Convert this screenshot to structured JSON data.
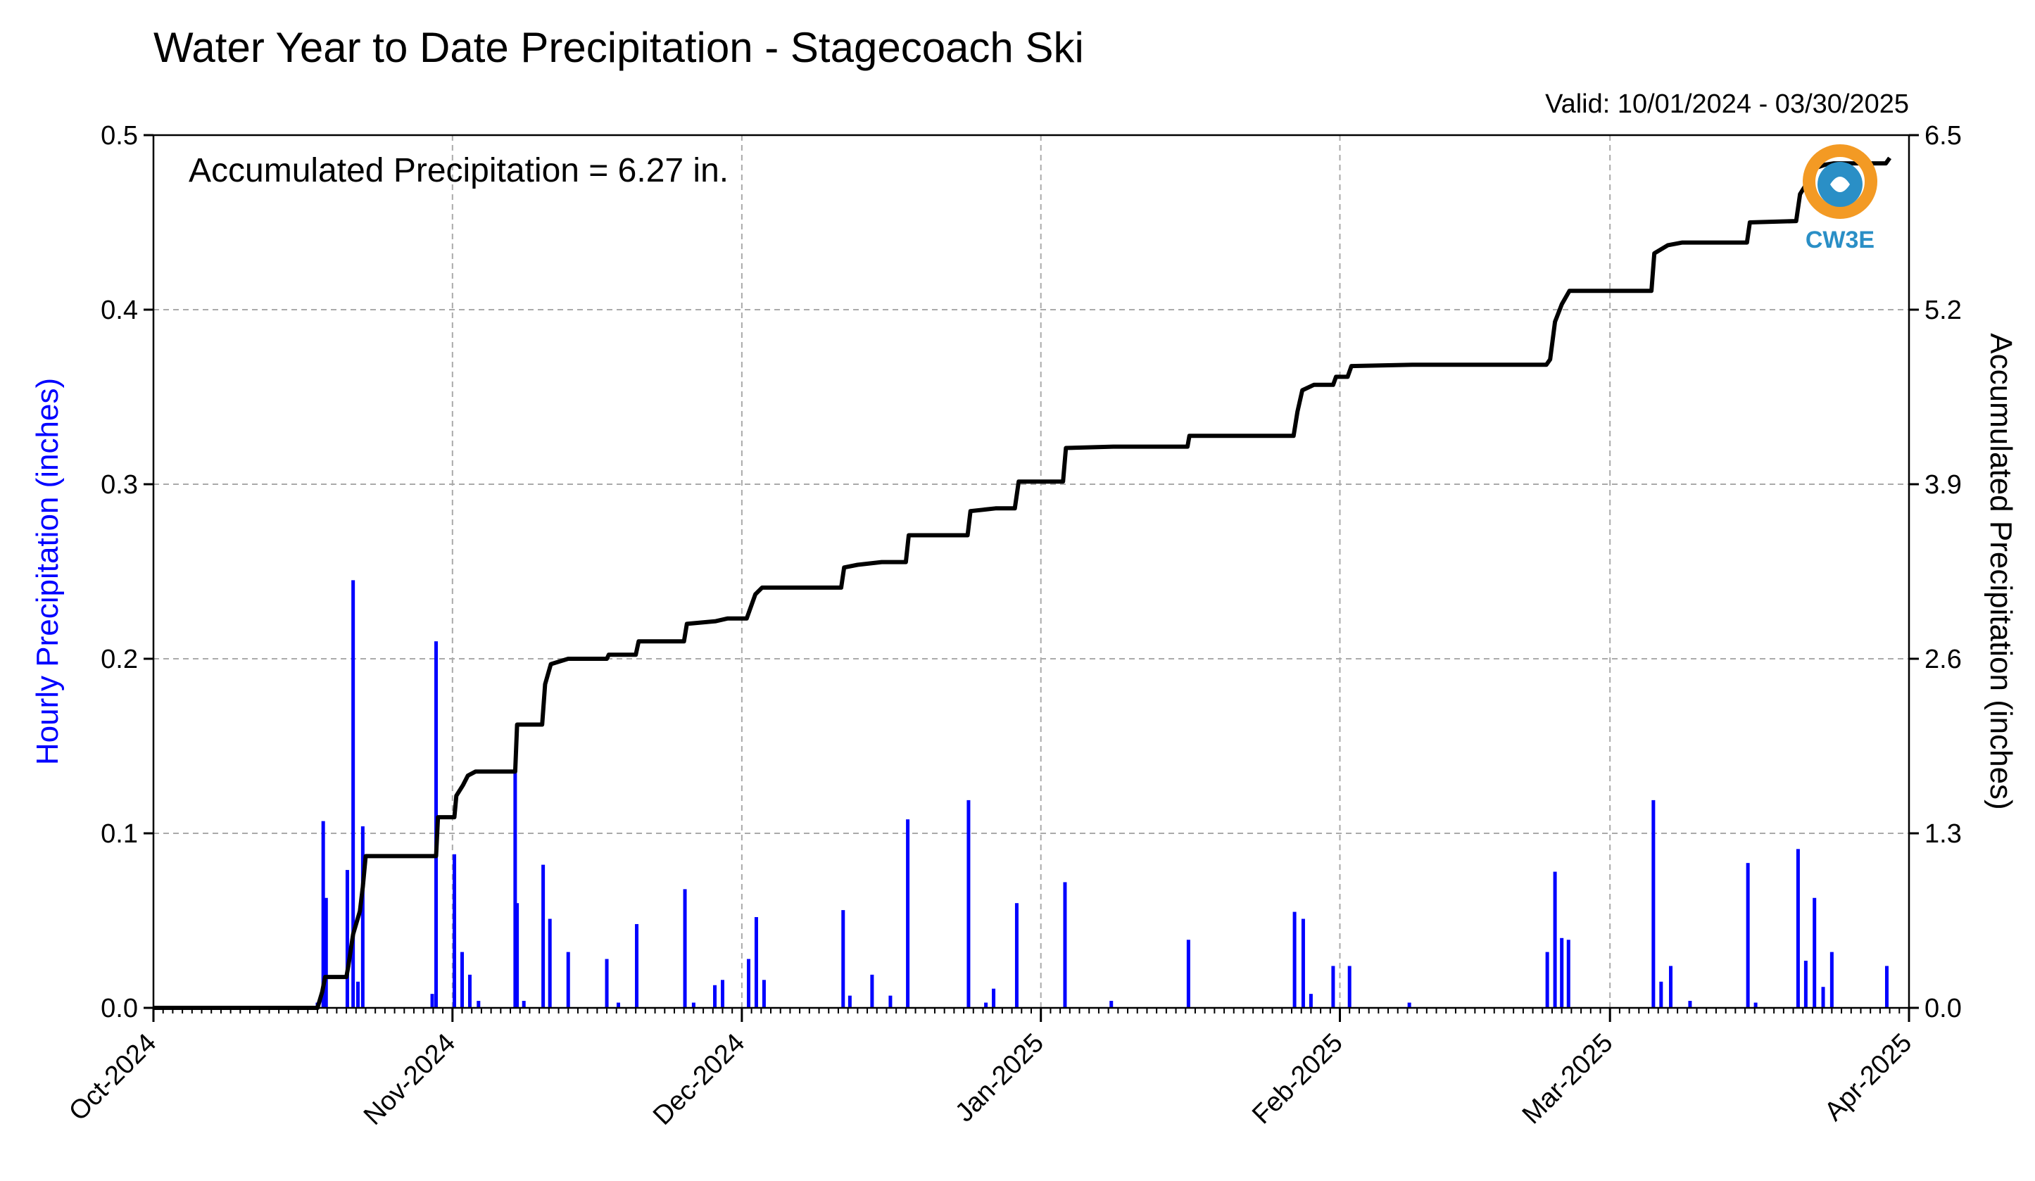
{
  "chart_data": {
    "type": "bar+line",
    "title": "Water Year to Date Precipitation - Stagecoach Ski",
    "subtitle": "Valid: 10/01/2024 - 03/30/2025",
    "annotation": "Accumulated Precipitation = 6.27 in.",
    "logo_text": "CW3E",
    "ylabel_left": "Hourly Precipitation (inches)",
    "ylabel_right": "Accumulated Precipitation (inches)",
    "left_axis_color": "#0000ff",
    "bar_color": "#0000ff",
    "line_color": "#000000",
    "grid": true,
    "grid_style": "dashed",
    "xlim": [
      0,
      182
    ],
    "ylim_left": [
      0,
      0.5
    ],
    "ylim_right": [
      0,
      6.5
    ],
    "x_ticks": [
      {
        "x": 0,
        "label": "Oct-2024"
      },
      {
        "x": 31,
        "label": "Nov-2024"
      },
      {
        "x": 61,
        "label": "Dec-2024"
      },
      {
        "x": 92,
        "label": "Jan-2025"
      },
      {
        "x": 123,
        "label": "Feb-2025"
      },
      {
        "x": 151,
        "label": "Mar-2025"
      },
      {
        "x": 182,
        "label": "Apr-2025"
      }
    ],
    "y_ticks_left": [
      "0.0",
      "0.1",
      "0.2",
      "0.3",
      "0.4",
      "0.5"
    ],
    "y_ticks_left_values": [
      0,
      0.1,
      0.2,
      0.3,
      0.4,
      0.5
    ],
    "y_ticks_right": [
      "0.0",
      "1.3",
      "2.6",
      "3.9",
      "5.2",
      "6.5"
    ],
    "y_ticks_right_values": [
      0,
      1.3,
      2.6,
      3.9,
      5.2,
      6.5
    ],
    "hourly_bars": [
      {
        "x": 17.0,
        "y": 0.003
      },
      {
        "x": 17.6,
        "y": 0.107
      },
      {
        "x": 17.9,
        "y": 0.063
      },
      {
        "x": 20.1,
        "y": 0.079
      },
      {
        "x": 20.7,
        "y": 0.245
      },
      {
        "x": 21.2,
        "y": 0.015
      },
      {
        "x": 21.7,
        "y": 0.104
      },
      {
        "x": 28.9,
        "y": 0.008
      },
      {
        "x": 29.3,
        "y": 0.21
      },
      {
        "x": 31.2,
        "y": 0.088
      },
      {
        "x": 32.0,
        "y": 0.032
      },
      {
        "x": 32.8,
        "y": 0.019
      },
      {
        "x": 33.7,
        "y": 0.004
      },
      {
        "x": 37.5,
        "y": 0.136
      },
      {
        "x": 37.7,
        "y": 0.06
      },
      {
        "x": 38.4,
        "y": 0.004
      },
      {
        "x": 40.4,
        "y": 0.082
      },
      {
        "x": 41.1,
        "y": 0.051
      },
      {
        "x": 43.0,
        "y": 0.032
      },
      {
        "x": 47.0,
        "y": 0.028
      },
      {
        "x": 48.2,
        "y": 0.003
      },
      {
        "x": 50.1,
        "y": 0.048
      },
      {
        "x": 55.1,
        "y": 0.068
      },
      {
        "x": 56.0,
        "y": 0.003
      },
      {
        "x": 58.2,
        "y": 0.013
      },
      {
        "x": 59.0,
        "y": 0.016
      },
      {
        "x": 61.7,
        "y": 0.028
      },
      {
        "x": 62.5,
        "y": 0.052
      },
      {
        "x": 63.3,
        "y": 0.016
      },
      {
        "x": 71.5,
        "y": 0.056
      },
      {
        "x": 72.2,
        "y": 0.007
      },
      {
        "x": 74.5,
        "y": 0.019
      },
      {
        "x": 76.4,
        "y": 0.007
      },
      {
        "x": 78.2,
        "y": 0.108
      },
      {
        "x": 84.5,
        "y": 0.119
      },
      {
        "x": 86.3,
        "y": 0.003
      },
      {
        "x": 87.1,
        "y": 0.011
      },
      {
        "x": 89.5,
        "y": 0.06
      },
      {
        "x": 94.5,
        "y": 0.072
      },
      {
        "x": 99.3,
        "y": 0.004
      },
      {
        "x": 107.3,
        "y": 0.039
      },
      {
        "x": 118.3,
        "y": 0.055
      },
      {
        "x": 119.2,
        "y": 0.051
      },
      {
        "x": 120.0,
        "y": 0.008
      },
      {
        "x": 122.3,
        "y": 0.024
      },
      {
        "x": 124.0,
        "y": 0.024
      },
      {
        "x": 130.2,
        "y": 0.003
      },
      {
        "x": 144.5,
        "y": 0.032
      },
      {
        "x": 145.3,
        "y": 0.078
      },
      {
        "x": 146.0,
        "y": 0.04
      },
      {
        "x": 146.7,
        "y": 0.039
      },
      {
        "x": 155.5,
        "y": 0.119
      },
      {
        "x": 156.3,
        "y": 0.015
      },
      {
        "x": 157.3,
        "y": 0.024
      },
      {
        "x": 159.3,
        "y": 0.004
      },
      {
        "x": 165.3,
        "y": 0.083
      },
      {
        "x": 166.1,
        "y": 0.003
      },
      {
        "x": 170.5,
        "y": 0.091
      },
      {
        "x": 171.3,
        "y": 0.027
      },
      {
        "x": 172.2,
        "y": 0.063
      },
      {
        "x": 173.1,
        "y": 0.012
      },
      {
        "x": 174.0,
        "y": 0.032
      },
      {
        "x": 179.7,
        "y": 0.024
      }
    ],
    "accumulated": [
      [
        0,
        0
      ],
      [
        17.0,
        0.0
      ],
      [
        17.5,
        0.12
      ],
      [
        17.8,
        0.23
      ],
      [
        20.0,
        0.23
      ],
      [
        20.2,
        0.31
      ],
      [
        20.7,
        0.55
      ],
      [
        21.4,
        0.72
      ],
      [
        21.7,
        0.9
      ],
      [
        22.0,
        1.13
      ],
      [
        28.9,
        1.13
      ],
      [
        29.3,
        1.13
      ],
      [
        29.5,
        1.42
      ],
      [
        31.2,
        1.42
      ],
      [
        31.4,
        1.58
      ],
      [
        32.1,
        1.66
      ],
      [
        32.6,
        1.73
      ],
      [
        33.4,
        1.76
      ],
      [
        37.5,
        1.76
      ],
      [
        37.7,
        2.11
      ],
      [
        40.3,
        2.11
      ],
      [
        40.6,
        2.41
      ],
      [
        41.2,
        2.56
      ],
      [
        43.0,
        2.6
      ],
      [
        47.0,
        2.6
      ],
      [
        47.2,
        2.63
      ],
      [
        50.0,
        2.63
      ],
      [
        50.3,
        2.73
      ],
      [
        55.0,
        2.73
      ],
      [
        55.3,
        2.86
      ],
      [
        58.3,
        2.88
      ],
      [
        59.5,
        2.9
      ],
      [
        61.5,
        2.9
      ],
      [
        61.8,
        2.96
      ],
      [
        62.4,
        3.08
      ],
      [
        63.1,
        3.13
      ],
      [
        71.3,
        3.13
      ],
      [
        71.6,
        3.28
      ],
      [
        73.0,
        3.3
      ],
      [
        75.5,
        3.32
      ],
      [
        78.0,
        3.32
      ],
      [
        78.3,
        3.52
      ],
      [
        84.4,
        3.52
      ],
      [
        84.7,
        3.7
      ],
      [
        87.3,
        3.72
      ],
      [
        89.3,
        3.72
      ],
      [
        89.7,
        3.92
      ],
      [
        94.3,
        3.92
      ],
      [
        94.6,
        4.17
      ],
      [
        99.5,
        4.18
      ],
      [
        107.2,
        4.18
      ],
      [
        107.4,
        4.26
      ],
      [
        118.2,
        4.26
      ],
      [
        118.6,
        4.44
      ],
      [
        119.1,
        4.6
      ],
      [
        120.3,
        4.64
      ],
      [
        122.3,
        4.64
      ],
      [
        122.6,
        4.7
      ],
      [
        123.8,
        4.7
      ],
      [
        124.2,
        4.78
      ],
      [
        130.5,
        4.79
      ],
      [
        144.4,
        4.79
      ],
      [
        144.8,
        4.83
      ],
      [
        145.3,
        5.11
      ],
      [
        146.0,
        5.24
      ],
      [
        146.8,
        5.34
      ],
      [
        155.3,
        5.34
      ],
      [
        155.6,
        5.62
      ],
      [
        157.0,
        5.68
      ],
      [
        158.5,
        5.7
      ],
      [
        165.2,
        5.7
      ],
      [
        165.5,
        5.85
      ],
      [
        170.3,
        5.86
      ],
      [
        170.7,
        6.06
      ],
      [
        171.4,
        6.14
      ],
      [
        172.1,
        6.25
      ],
      [
        173.3,
        6.28
      ],
      [
        174.2,
        6.29
      ],
      [
        179.6,
        6.29
      ],
      [
        180.0,
        6.33
      ]
    ]
  }
}
